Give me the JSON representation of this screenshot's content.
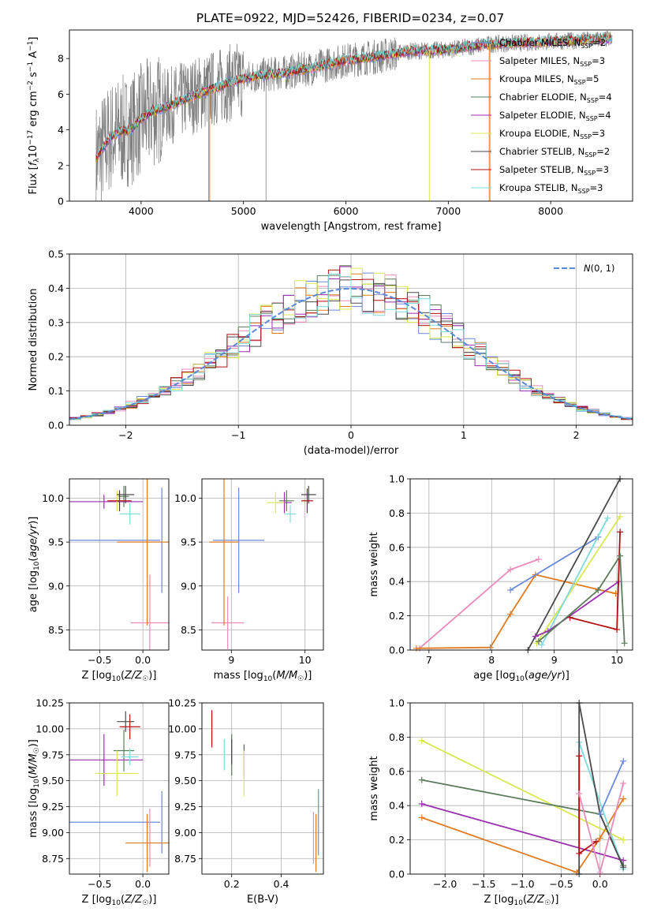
{
  "figure_title": "PLATE=0922, MJD=52426, FIBERID=0234, z=0.07",
  "colors": {
    "chabrier_miles": "#6a8ad9",
    "salpeter_miles": "#e98ab8",
    "kroupa_miles": "#e07b22",
    "chabrier_elodie": "#5c7c5c",
    "salpeter_elodie": "#9b2fae",
    "kroupa_elodie": "#d8e84f",
    "chabrier_stelib": "#4a4a4a",
    "salpeter_stelib": "#b01010",
    "kroupa_stelib": "#7fdada",
    "data": "#7f7f7f",
    "gaussian": "#5a8ad6"
  },
  "chart_data": [
    {
      "type": "line",
      "id": "spectrum",
      "title": "PLATE=0922, MJD=52426, FIBERID=0234, z=0.07",
      "xlabel": "wavelength [Angstrom, rest frame]",
      "ylabel": "Flux [f_λ 10^-17 erg cm^-2 s^-1 A^-1]",
      "xlim": [
        3300,
        8800
      ],
      "ylim": [
        0,
        9.6
      ],
      "xticks": [
        4000,
        5000,
        6000,
        7000,
        8000
      ],
      "yticks": [
        0,
        2,
        4,
        6,
        8
      ],
      "legend_position": "top-right",
      "legend": [
        {
          "text": "Chabrier MILES, N_SSP=2",
          "color": "#6a8ad9"
        },
        {
          "text": "Salpeter MILES, N_SSP=3",
          "color": "#e98ab8"
        },
        {
          "text": "Kroupa MILES, N_SSP=5",
          "color": "#e07b22"
        },
        {
          "text": "Chabrier ELODIE, N_SSP=4",
          "color": "#5c7c5c"
        },
        {
          "text": "Salpeter ELODIE, N_SSP=4",
          "color": "#9b2fae"
        },
        {
          "text": "Kroupa ELODIE, N_SSP=3",
          "color": "#d8e84f"
        },
        {
          "text": "Chabrier STELIB, N_SSP=2",
          "color": "#4a4a4a"
        },
        {
          "text": "Salpeter STELIB, N_SSP=3",
          "color": "#b01010"
        },
        {
          "text": "Kroupa STELIB, N_SSP=3",
          "color": "#7fdada"
        }
      ],
      "model_trend": [
        [
          3560,
          2.4
        ],
        [
          3700,
          3.6
        ],
        [
          3800,
          3.9
        ],
        [
          3900,
          4.0
        ],
        [
          4000,
          4.6
        ],
        [
          4100,
          5.0
        ],
        [
          4300,
          5.4
        ],
        [
          4500,
          5.9
        ],
        [
          4700,
          6.3
        ],
        [
          4900,
          6.7
        ],
        [
          5100,
          7.0
        ],
        [
          5400,
          7.2
        ],
        [
          5700,
          7.5
        ],
        [
          6000,
          7.9
        ],
        [
          6300,
          8.1
        ],
        [
          6600,
          8.4
        ],
        [
          7000,
          8.5
        ],
        [
          7400,
          8.8
        ],
        [
          7800,
          8.9
        ],
        [
          8200,
          9.0
        ],
        [
          8600,
          9.1
        ]
      ],
      "data_range": [
        3560,
        8600
      ]
    },
    {
      "type": "bar",
      "id": "residuals",
      "xlabel": "(data-model)/error",
      "ylabel": "Normed distribution",
      "xlim": [
        -2.5,
        2.5
      ],
      "ylim": [
        0,
        0.5
      ],
      "xticks": [
        -2,
        -1,
        0,
        1,
        2
      ],
      "yticks": [
        0,
        0.1,
        0.2,
        0.3,
        0.4,
        0.5
      ],
      "legend": [
        {
          "text": "N(0, 1)",
          "color": "#5a8ad6"
        }
      ],
      "legend_position": "top-right",
      "bin_width": 0.1,
      "reference_curve": "gaussian N(0,1)"
    },
    {
      "type": "scatter",
      "id": "age-vs-z",
      "xlabel": "Z [log10(Z/Z☉)]",
      "ylabel": "age [log10(age/yr)]",
      "xlim": [
        -0.85,
        0.3
      ],
      "ylim": [
        8.27,
        10.22
      ],
      "xticks": [
        -0.5,
        0.0
      ],
      "yticks": [
        8.5,
        9.0,
        9.5,
        10.0
      ],
      "points": [
        {
          "x": 0.22,
          "y": 9.52,
          "xerr": 0.0,
          "yerr": 0.6,
          "color": "#6a8ad9"
        },
        {
          "x": -0.6,
          "y": 9.52,
          "xerr": 0.8,
          "yerr": 0.0,
          "color": "#6a8ad9"
        },
        {
          "x": 0.08,
          "y": 8.58,
          "xerr": 0.22,
          "yerr": 0.55,
          "color": "#e98ab8"
        },
        {
          "x": 0.05,
          "y": 9.5,
          "xerr": 0.35,
          "yerr": 0.95,
          "color": "#e07b22"
        },
        {
          "x": -0.22,
          "y": 10.02,
          "xerr": 0.06,
          "yerr": 0.12,
          "color": "#5c7c5c"
        },
        {
          "x": -0.45,
          "y": 9.96,
          "xerr": 0.45,
          "yerr": 0.08,
          "color": "#9b2fae"
        },
        {
          "x": -0.3,
          "y": 9.97,
          "xerr": 0.08,
          "yerr": 0.12,
          "color": "#d8e84f"
        },
        {
          "x": -0.2,
          "y": 10.04,
          "xerr": 0.1,
          "yerr": 0.1,
          "color": "#4a4a4a"
        },
        {
          "x": -0.27,
          "y": 9.97,
          "xerr": 0.14,
          "yerr": 0.12,
          "color": "#b01010"
        },
        {
          "x": -0.15,
          "y": 9.82,
          "xerr": 0.12,
          "yerr": 0.12,
          "color": "#7fdada"
        }
      ]
    },
    {
      "type": "scatter",
      "id": "age-vs-mass",
      "xlabel": "mass [log10(M/M☉)]",
      "ylabel": "",
      "xlim": [
        8.6,
        10.25
      ],
      "ylim": [
        8.27,
        10.22
      ],
      "xticks": [
        9,
        10
      ],
      "yticks": [
        8.5,
        9.0,
        9.5,
        10.0
      ],
      "points": [
        {
          "x": 9.1,
          "y": 9.52,
          "xerr": 0.35,
          "yerr": 0.6,
          "color": "#6a8ad9"
        },
        {
          "x": 8.95,
          "y": 8.58,
          "xerr": 0.22,
          "yerr": 0.3,
          "color": "#e98ab8"
        },
        {
          "x": 8.9,
          "y": 9.5,
          "xerr": 0.2,
          "yerr": 0.95,
          "color": "#e07b22"
        },
        {
          "x": 9.75,
          "y": 9.97,
          "xerr": 0.1,
          "yerr": 0.12,
          "color": "#5c7c5c"
        },
        {
          "x": 9.72,
          "y": 9.95,
          "xerr": 0.1,
          "yerr": 0.12,
          "color": "#9b2fae"
        },
        {
          "x": 9.6,
          "y": 9.95,
          "xerr": 0.12,
          "yerr": 0.12,
          "color": "#d8e84f"
        },
        {
          "x": 10.05,
          "y": 10.04,
          "xerr": 0.1,
          "yerr": 0.1,
          "color": "#4a4a4a"
        },
        {
          "x": 10.03,
          "y": 9.97,
          "xerr": 0.08,
          "yerr": 0.14,
          "color": "#b01010"
        },
        {
          "x": 9.8,
          "y": 9.82,
          "xerr": 0.08,
          "yerr": 0.1,
          "color": "#7fdada"
        }
      ]
    },
    {
      "type": "line",
      "id": "mass-weight-vs-age",
      "xlabel": "age [log10(age/yr)]",
      "ylabel": "mass weight",
      "xlim": [
        6.7,
        10.25
      ],
      "ylim": [
        0,
        1.0
      ],
      "xticks": [
        7,
        8,
        9,
        10
      ],
      "yticks": [
        0.0,
        0.2,
        0.4,
        0.6,
        0.8,
        1.0
      ],
      "series": [
        {
          "color": "#e98ab8",
          "x": [
            6.85,
            8.3,
            8.75
          ],
          "y": [
            0.01,
            0.47,
            0.53
          ]
        },
        {
          "color": "#e07b22",
          "x": [
            6.8,
            7.98,
            8.3,
            8.7,
            9.98
          ],
          "y": [
            0.01,
            0.015,
            0.21,
            0.44,
            0.33
          ]
        },
        {
          "color": "#6a8ad9",
          "x": [
            8.3,
            9.7
          ],
          "y": [
            0.35,
            0.66
          ]
        },
        {
          "color": "#4a4a4a",
          "x": [
            8.58,
            10.05
          ],
          "y": [
            0.0,
            1.0
          ]
        },
        {
          "color": "#d8e84f",
          "x": [
            8.72,
            10.05
          ],
          "y": [
            0.04,
            0.78
          ]
        },
        {
          "color": "#7fdada",
          "x": [
            8.8,
            9.85
          ],
          "y": [
            0.03,
            0.77
          ]
        },
        {
          "color": "#9b2fae",
          "x": [
            8.7,
            8.9,
            10.03
          ],
          "y": [
            0.08,
            0.11,
            0.4
          ]
        },
        {
          "color": "#b01010",
          "x": [
            9.25,
            10.0,
            10.05
          ],
          "y": [
            0.19,
            0.12,
            0.69
          ]
        },
        {
          "color": "#5c7c5c",
          "x": [
            8.75,
            9.7,
            10.05,
            10.12
          ],
          "y": [
            0.05,
            0.35,
            0.55,
            0.04
          ]
        }
      ]
    },
    {
      "type": "scatter",
      "id": "mass-vs-z",
      "xlabel": "Z [log10(Z/Z☉)]",
      "ylabel": "mass [log10(M/M☉)]",
      "xlim": [
        -0.85,
        0.3
      ],
      "ylim": [
        8.6,
        10.25
      ],
      "xticks": [
        -0.5,
        0.0
      ],
      "yticks": [
        8.75,
        9.0,
        9.25,
        9.5,
        9.75,
        10.0,
        10.25
      ],
      "points": [
        {
          "x": -0.6,
          "y": 9.1,
          "xerr": 0.8,
          "yerr": 0.0,
          "color": "#6a8ad9"
        },
        {
          "x": 0.22,
          "y": 9.1,
          "xerr": 0.0,
          "yerr": 0.3,
          "color": "#6a8ad9"
        },
        {
          "x": 0.08,
          "y": 8.95,
          "xerr": 0.0,
          "yerr": 0.28,
          "color": "#e98ab8"
        },
        {
          "x": 0.05,
          "y": 8.9,
          "xerr": 0.25,
          "yerr": 0.28,
          "color": "#e07b22"
        },
        {
          "x": -0.22,
          "y": 9.79,
          "xerr": 0.12,
          "yerr": 0.2,
          "color": "#5c7c5c"
        },
        {
          "x": -0.45,
          "y": 9.7,
          "xerr": 0.45,
          "yerr": 0.25,
          "color": "#9b2fae"
        },
        {
          "x": -0.3,
          "y": 9.57,
          "xerr": 0.25,
          "yerr": 0.22,
          "color": "#d8e84f"
        },
        {
          "x": -0.2,
          "y": 10.07,
          "xerr": 0.1,
          "yerr": 0.1,
          "color": "#4a4a4a"
        },
        {
          "x": -0.15,
          "y": 10.02,
          "xerr": 0.12,
          "yerr": 0.12,
          "color": "#b01010"
        },
        {
          "x": -0.15,
          "y": 9.73,
          "xerr": 0.1,
          "yerr": 0.08,
          "color": "#7fdada"
        }
      ]
    },
    {
      "type": "scatter",
      "id": "mass-vs-ebv",
      "xlabel": "E(B-V)",
      "ylabel": "",
      "xlim": [
        0.08,
        0.57
      ],
      "ylim": [
        8.6,
        10.25
      ],
      "xticks": [
        0.2,
        0.4
      ],
      "yticks": [
        8.75,
        9.0,
        9.25,
        9.5,
        9.75,
        10.0,
        10.25
      ],
      "points": [
        {
          "x": 0.55,
          "y": 9.1,
          "xerr": 0.0,
          "yerr": 0.32,
          "color": "#6a8ad9"
        },
        {
          "x": 0.53,
          "y": 8.95,
          "xerr": 0.0,
          "yerr": 0.25,
          "color": "#e98ab8"
        },
        {
          "x": 0.54,
          "y": 8.9,
          "xerr": 0.0,
          "yerr": 0.28,
          "color": "#e07b22"
        },
        {
          "x": 0.2,
          "y": 9.75,
          "xerr": 0.0,
          "yerr": 0.2,
          "color": "#5c7c5c"
        },
        {
          "x": 0.25,
          "y": 9.7,
          "xerr": 0.0,
          "yerr": 0.15,
          "color": "#9b2fae"
        },
        {
          "x": 0.25,
          "y": 9.57,
          "xerr": 0.0,
          "yerr": 0.22,
          "color": "#d8e84f"
        },
        {
          "x": 0.2,
          "y": 9.78,
          "xerr": 0.0,
          "yerr": 0.12,
          "color": "#4a4a4a"
        },
        {
          "x": 0.12,
          "y": 10.0,
          "xerr": 0.0,
          "yerr": 0.18,
          "color": "#b01010"
        },
        {
          "x": 0.17,
          "y": 9.75,
          "xerr": 0.0,
          "yerr": 0.15,
          "color": "#7fdada"
        }
      ]
    },
    {
      "type": "line",
      "id": "mass-weight-vs-z",
      "xlabel": "Z [log10(Z/Z☉)]",
      "ylabel": "mass weight",
      "xlim": [
        -2.45,
        0.42
      ],
      "ylim": [
        0,
        1.0
      ],
      "xticks": [
        -2.0,
        -1.5,
        -1.0,
        -0.5,
        0.0
      ],
      "yticks": [
        0.0,
        0.2,
        0.4,
        0.6,
        0.8,
        1.0
      ],
      "series": [
        {
          "color": "#d8e84f",
          "x": [
            -2.3,
            0.3
          ],
          "y": [
            0.78,
            0.2
          ]
        },
        {
          "color": "#5c7c5c",
          "x": [
            -2.3,
            0.0,
            0.3
          ],
          "y": [
            0.55,
            0.35,
            0.05
          ]
        },
        {
          "color": "#9b2fae",
          "x": [
            -2.3,
            0.3
          ],
          "y": [
            0.41,
            0.08
          ]
        },
        {
          "color": "#e07b22",
          "x": [
            -2.3,
            -0.3,
            0.0,
            0.3
          ],
          "y": [
            0.33,
            0.01,
            0.21,
            0.44
          ]
        },
        {
          "color": "#7fdada",
          "x": [
            -0.27,
            0.3
          ],
          "y": [
            0.77,
            0.03
          ]
        },
        {
          "color": "#4a4a4a",
          "x": [
            -0.27,
            -0.27,
            0.0,
            0.3
          ],
          "y": [
            0.0,
            1.0,
            0.35,
            0.04
          ]
        },
        {
          "color": "#b01010",
          "x": [
            -0.27,
            -0.27,
            -0.05
          ],
          "y": [
            0.69,
            0.12,
            0.19
          ]
        },
        {
          "color": "#e98ab8",
          "x": [
            -0.27,
            0.0,
            0.3
          ],
          "y": [
            0.47,
            0.01,
            0.53
          ]
        },
        {
          "color": "#6a8ad9",
          "x": [
            0.0,
            0.3
          ],
          "y": [
            0.35,
            0.66
          ]
        }
      ]
    }
  ]
}
